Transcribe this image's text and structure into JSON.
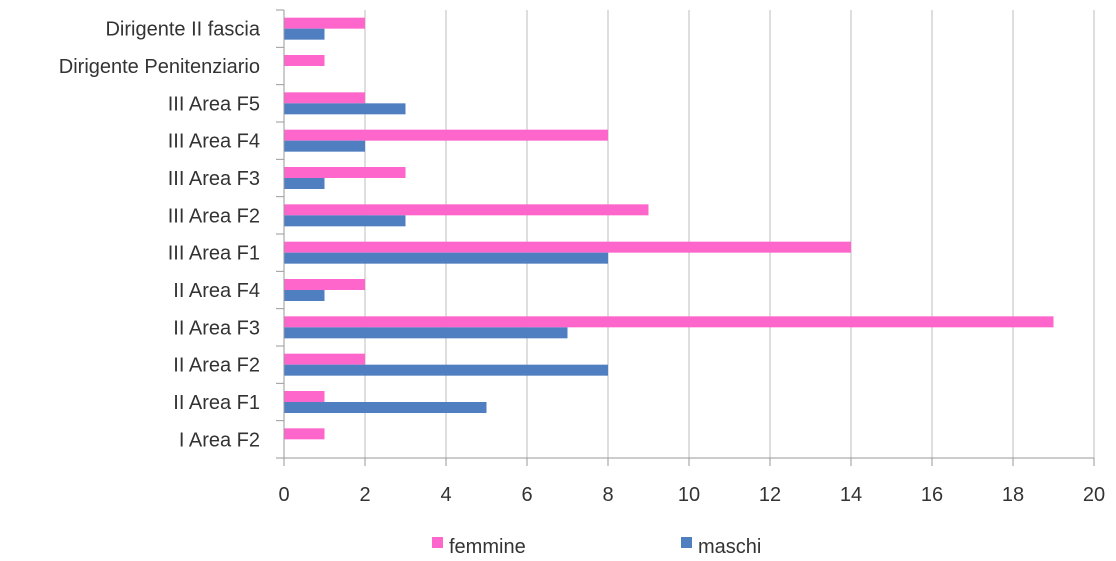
{
  "chart_data": {
    "type": "bar",
    "orientation": "horizontal",
    "categories": [
      "Dirigente II fascia",
      "Dirigente Penitenziario",
      "III Area F5",
      "III Area F4",
      "III Area F3",
      "III Area F2",
      "III Area F1",
      "II Area F4",
      "II Area F3",
      "II Area F2",
      "II Area F1",
      "I Area F2"
    ],
    "series": [
      {
        "name": "femmine",
        "color": "#ff66cc",
        "values": [
          2,
          1,
          2,
          8,
          3,
          9,
          14,
          2,
          19,
          2,
          1,
          1
        ]
      },
      {
        "name": "maschi",
        "color": "#4f7fc0",
        "values": [
          1,
          0,
          3,
          2,
          1,
          3,
          8,
          1,
          7,
          8,
          5,
          0
        ]
      }
    ],
    "xlim": [
      0,
      20
    ],
    "xticks": [
      0,
      2,
      4,
      6,
      8,
      10,
      12,
      14,
      16,
      18,
      20
    ],
    "grid": true,
    "legend_position": "bottom",
    "title": "",
    "xlabel": "",
    "ylabel": ""
  }
}
